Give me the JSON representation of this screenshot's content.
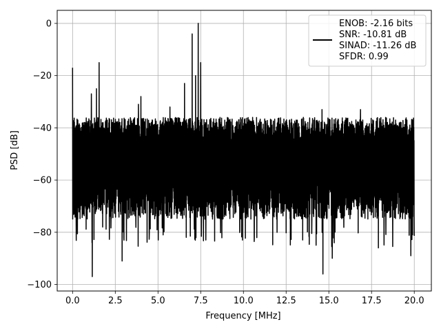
{
  "chart_data": {
    "type": "line",
    "title": "",
    "xlabel": "Frequency [MHz]",
    "ylabel": "PSD [dB]",
    "xlim": [
      -0.9,
      21.0
    ],
    "ylim": [
      -102.5,
      5.0
    ],
    "xticks": [
      0.0,
      2.5,
      5.0,
      7.5,
      10.0,
      12.5,
      15.0,
      17.5,
      20.0
    ],
    "xtick_labels": [
      "0.0",
      "2.5",
      "5.0",
      "7.5",
      "10.0",
      "12.5",
      "15.0",
      "17.5",
      "20.0"
    ],
    "yticks": [
      0,
      -20,
      -40,
      -60,
      -80,
      -100
    ],
    "ytick_labels": [
      "0",
      "−20",
      "−40",
      "−60",
      "−80",
      "−100"
    ],
    "grid": true,
    "legend_position": "top-right",
    "series": [
      {
        "name": "ENOB: -2.16 bits\nSNR: -10.81 dB\nSINAD: -11.26 dB\nSFDR: 0.99",
        "color": "#000000",
        "noise_floor_db": -55,
        "noise_envelope_db": [
          -36,
          -98
        ],
        "x_range": [
          0.0,
          20.0
        ],
        "peaks": [
          {
            "x": 0.0,
            "y": -17
          },
          {
            "x": 1.1,
            "y": -27
          },
          {
            "x": 1.55,
            "y": -15
          },
          {
            "x": 4.0,
            "y": -28
          },
          {
            "x": 6.55,
            "y": -23
          },
          {
            "x": 7.0,
            "y": -4
          },
          {
            "x": 7.35,
            "y": 0
          },
          {
            "x": 7.5,
            "y": -15
          },
          {
            "x": 7.2,
            "y": -20
          },
          {
            "x": 3.85,
            "y": -31
          },
          {
            "x": 1.4,
            "y": -25
          },
          {
            "x": 16.85,
            "y": -33
          },
          {
            "x": 14.6,
            "y": -33
          },
          {
            "x": 5.7,
            "y": -32
          }
        ],
        "dips": [
          {
            "x": 1.15,
            "y": -97
          },
          {
            "x": 2.9,
            "y": -91
          },
          {
            "x": 14.65,
            "y": -96
          },
          {
            "x": 15.2,
            "y": -90
          },
          {
            "x": 17.9,
            "y": -86
          },
          {
            "x": 19.8,
            "y": -89
          },
          {
            "x": 9.95,
            "y": -83
          },
          {
            "x": 7.8,
            "y": -83
          },
          {
            "x": 5.3,
            "y": -81
          }
        ]
      }
    ]
  }
}
